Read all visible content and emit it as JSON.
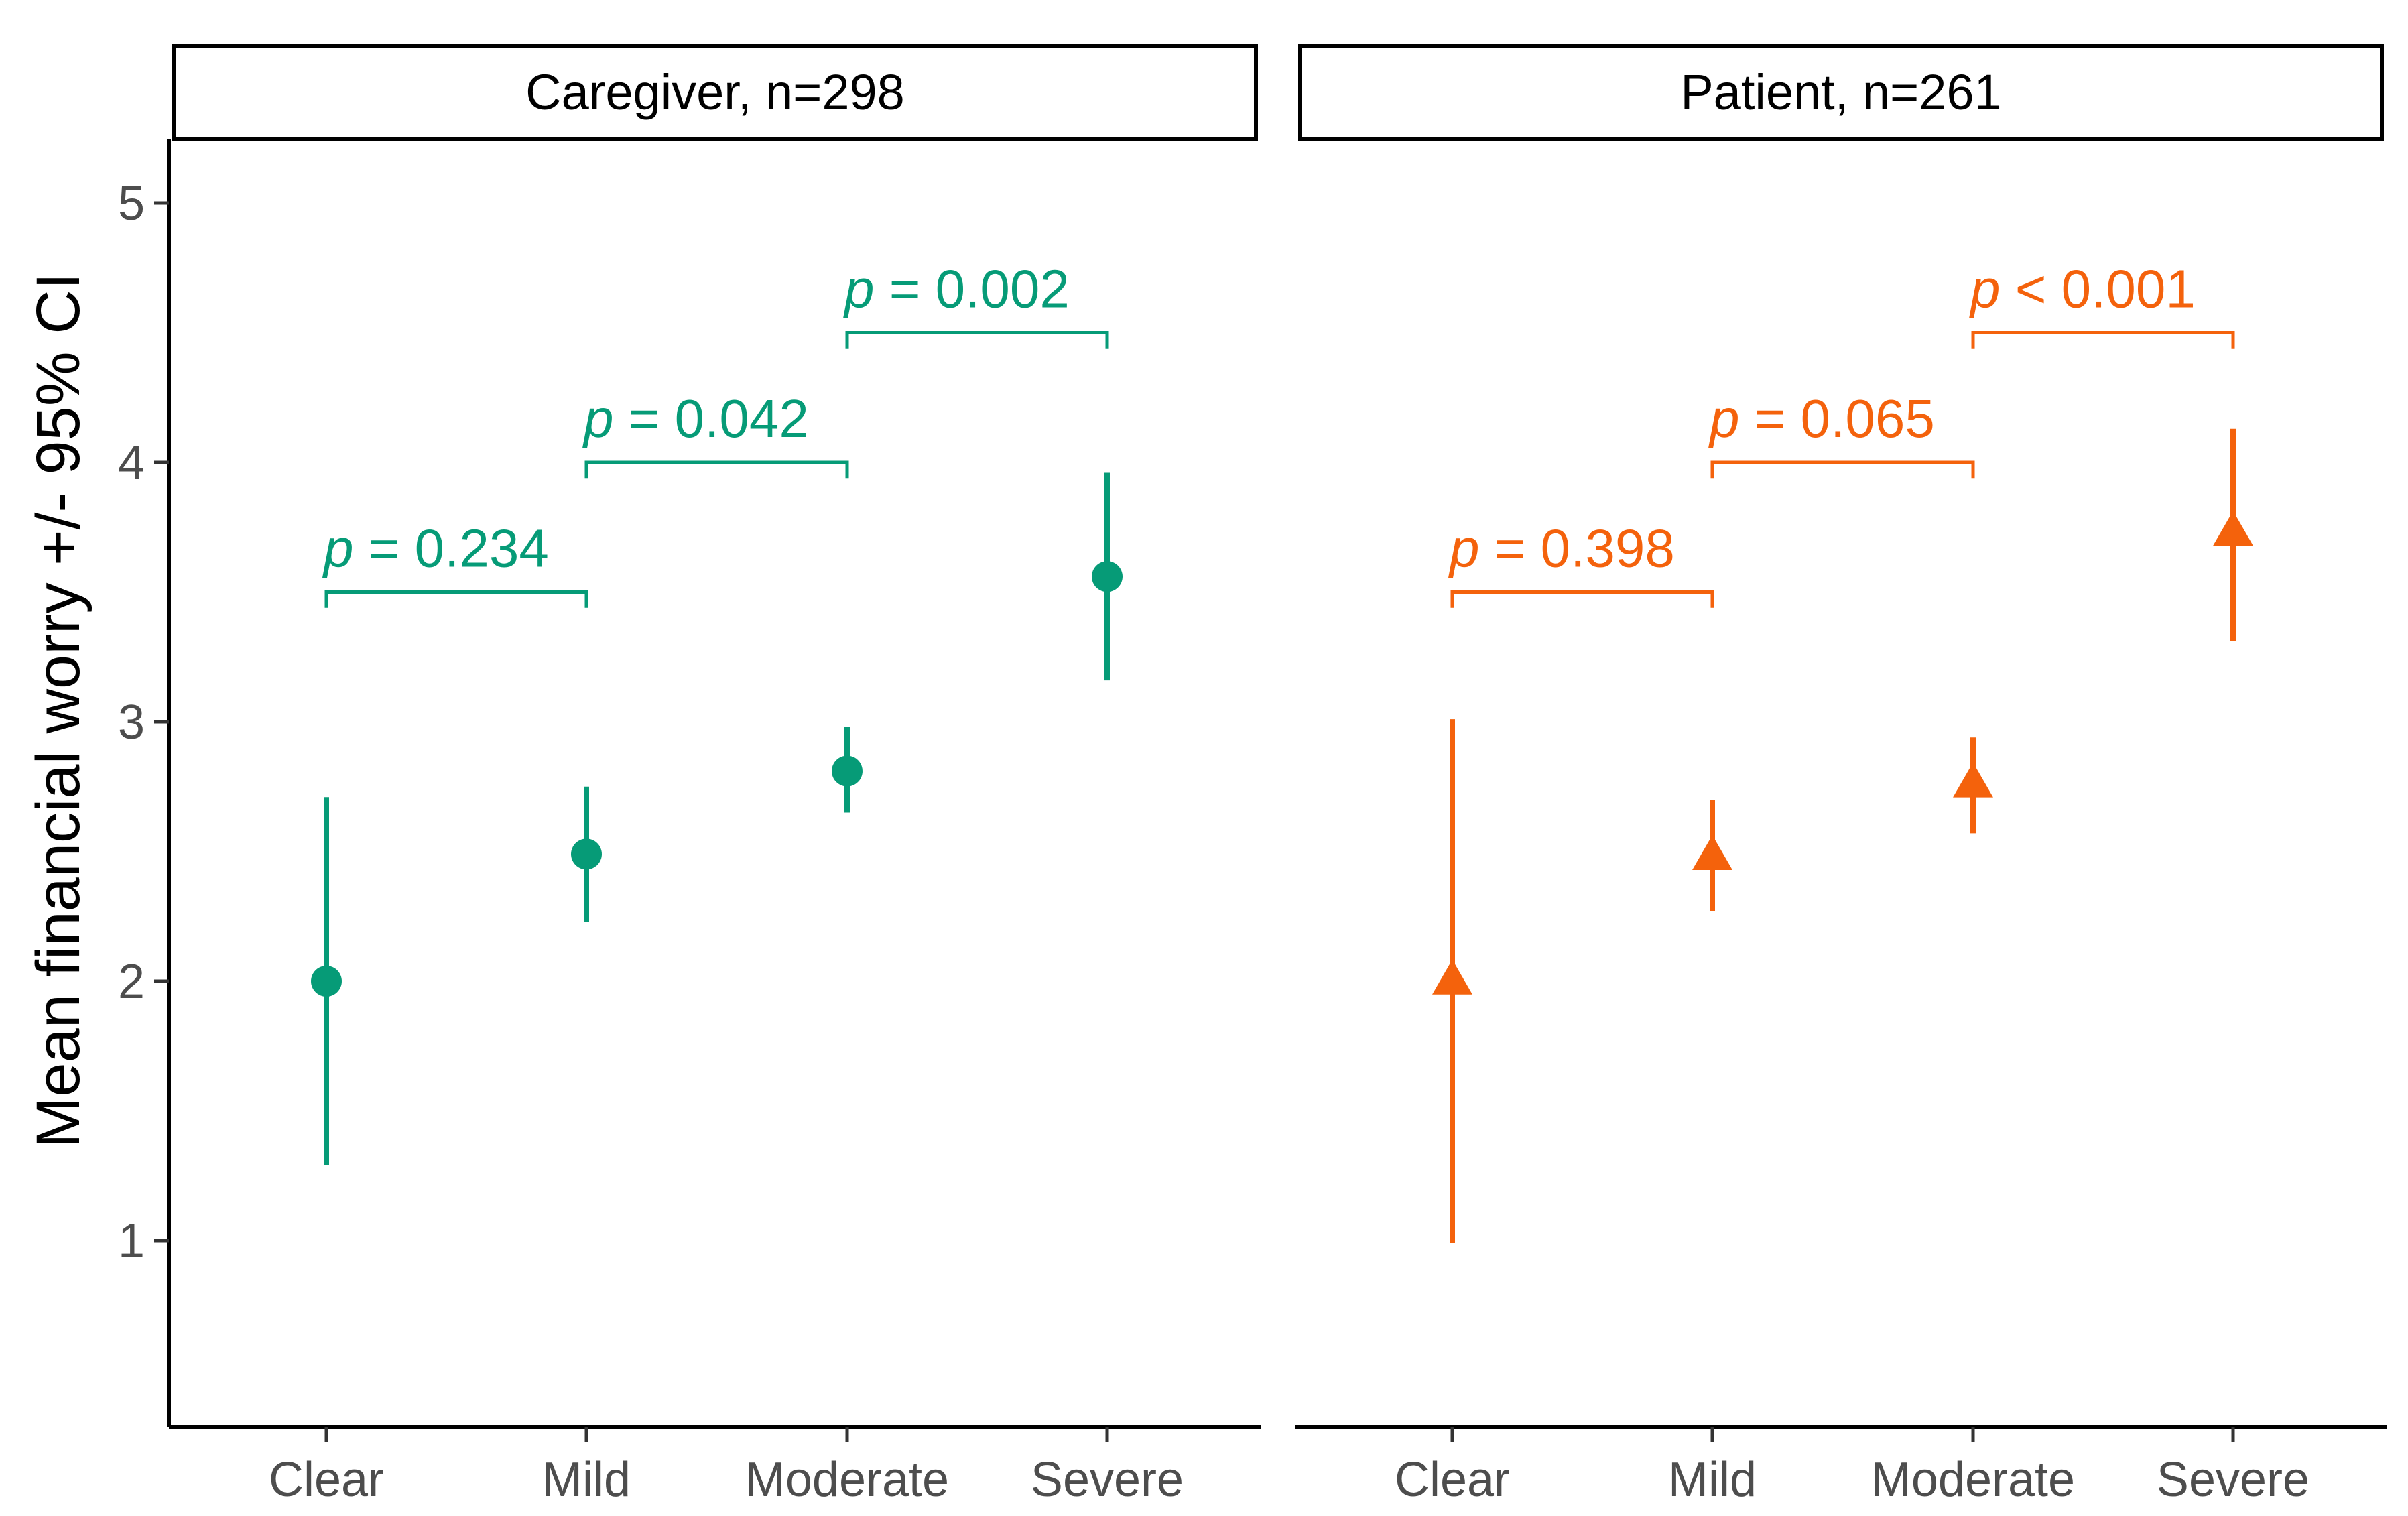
{
  "chart_data": {
    "type": "scatter",
    "subtype": "point-range with error bars, faceted",
    "ylabel": "Mean financial worry +/- 95% CI",
    "xlabel": "",
    "categories": [
      "Clear",
      "Mild",
      "Moderate",
      "Severe"
    ],
    "ylim": [
      0.3,
      5.2
    ],
    "yticks": [
      1,
      2,
      3,
      4,
      5
    ],
    "grid": false,
    "panels": [
      {
        "strip_label": "Caregiver, n=298",
        "color": "#069b77",
        "marker": "circle",
        "means": [
          2.0,
          2.49,
          2.81,
          3.56
        ],
        "ci_low": [
          1.29,
          2.23,
          2.65,
          3.16
        ],
        "ci_high": [
          2.71,
          2.75,
          2.98,
          3.96
        ],
        "comparisons": [
          {
            "from": 0,
            "to": 1,
            "p_symbol": "p",
            "p_rest": " = 0.234",
            "bracket_y": 3.5,
            "bracket_tick": 3.44
          },
          {
            "from": 1,
            "to": 2,
            "p_symbol": "p",
            "p_rest": " = 0.042",
            "bracket_y": 4.0,
            "bracket_tick": 3.94
          },
          {
            "from": 2,
            "to": 3,
            "p_symbol": "p",
            "p_rest": " = 0.002",
            "bracket_y": 4.5,
            "bracket_tick": 4.44
          }
        ]
      },
      {
        "strip_label": "Patient, n=261",
        "color": "#f4620c",
        "marker": "triangle",
        "means": [
          2.0,
          2.48,
          2.76,
          3.73
        ],
        "ci_low": [
          0.99,
          2.27,
          2.57,
          3.31
        ],
        "ci_high": [
          3.01,
          2.7,
          2.94,
          4.13
        ],
        "comparisons": [
          {
            "from": 0,
            "to": 1,
            "p_symbol": "p",
            "p_rest": " = 0.398",
            "bracket_y": 3.5,
            "bracket_tick": 3.44
          },
          {
            "from": 1,
            "to": 2,
            "p_symbol": "p",
            "p_rest": " = 0.065",
            "bracket_y": 4.0,
            "bracket_tick": 3.94
          },
          {
            "from": 2,
            "to": 3,
            "p_symbol": "p",
            "p_rest": " < 0.001",
            "bracket_y": 4.5,
            "bracket_tick": 4.44
          }
        ]
      }
    ]
  }
}
